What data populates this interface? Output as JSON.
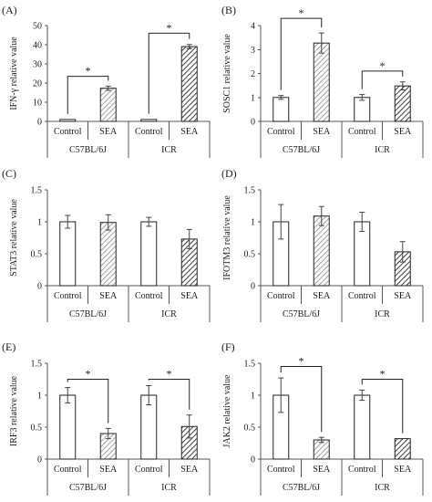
{
  "chart_data": [
    {
      "type": "bar",
      "panel_label": "(A)",
      "ylabel": "IFN-γ relative value",
      "ylim": [
        0,
        50
      ],
      "yticks": [
        0,
        10,
        20,
        30,
        40,
        50
      ],
      "categories": [
        "Control",
        "SEA",
        "Control",
        "SEA"
      ],
      "groups": [
        "C57BL/6J",
        "ICR"
      ],
      "values": [
        1,
        17.3,
        1,
        39
      ],
      "errors": [
        0,
        1.1,
        0,
        1.1
      ],
      "significance": [
        {
          "from": 0,
          "to": 1,
          "label": "*",
          "y": 23.5
        },
        {
          "from": 2,
          "to": 3,
          "label": "*",
          "y": 46
        }
      ]
    },
    {
      "type": "bar",
      "panel_label": "(B)",
      "ylabel": "SOSC1 relative value",
      "ylim": [
        0,
        4
      ],
      "yticks": [
        0,
        1,
        2,
        3,
        4
      ],
      "categories": [
        "Control",
        "SEA",
        "Control",
        "SEA"
      ],
      "groups": [
        "C57BL/6J",
        "ICR"
      ],
      "values": [
        1,
        3.27,
        1,
        1.48
      ],
      "errors": [
        0.08,
        0.42,
        0.12,
        0.17
      ],
      "significance": [
        {
          "from": 0,
          "to": 1,
          "label": "*",
          "y": 4.3
        },
        {
          "from": 2,
          "to": 3,
          "label": "*",
          "y": 2.1
        }
      ]
    },
    {
      "type": "bar",
      "panel_label": "(C)",
      "ylabel": "STAT3 relative value",
      "ylim": [
        0,
        1.5
      ],
      "yticks": [
        0,
        0.5,
        1,
        1.5
      ],
      "categories": [
        "Control",
        "SEA",
        "Control",
        "SEA"
      ],
      "groups": [
        "C57BL/6J",
        "ICR"
      ],
      "values": [
        1,
        0.99,
        1,
        0.73
      ],
      "errors": [
        0.1,
        0.12,
        0.07,
        0.15
      ],
      "significance": []
    },
    {
      "type": "bar",
      "panel_label": "(D)",
      "ylabel": "IFOTM3 relative value",
      "ylim": [
        0,
        1.5
      ],
      "yticks": [
        0,
        0.5,
        1,
        1.5
      ],
      "categories": [
        "Control",
        "SEA",
        "Control",
        "SEA"
      ],
      "groups": [
        "C57BL/6J",
        "ICR"
      ],
      "values": [
        1,
        1.09,
        1,
        0.53
      ],
      "errors": [
        0.27,
        0.15,
        0.15,
        0.16
      ],
      "significance": []
    },
    {
      "type": "bar",
      "panel_label": "(E)",
      "ylabel": "IRF3 relative value",
      "ylim": [
        0,
        1.5
      ],
      "yticks": [
        0,
        0.5,
        1,
        1.5
      ],
      "categories": [
        "Control",
        "SEA",
        "Control",
        "SEA"
      ],
      "groups": [
        "C57BL/6J",
        "ICR"
      ],
      "values": [
        1,
        0.4,
        1,
        0.51
      ],
      "errors": [
        0.12,
        0.08,
        0.15,
        0.18
      ],
      "significance": [
        {
          "from": 0,
          "to": 1,
          "label": "*",
          "y": 1.25
        },
        {
          "from": 2,
          "to": 3,
          "label": "*",
          "y": 1.25
        }
      ]
    },
    {
      "type": "bar",
      "panel_label": "(F)",
      "ylabel": "JAK2 relative value",
      "ylim": [
        0,
        1.5
      ],
      "yticks": [
        0,
        0.5,
        1,
        1.5
      ],
      "categories": [
        "Control",
        "SEA",
        "Control",
        "SEA"
      ],
      "groups": [
        "C57BL/6J",
        "ICR"
      ],
      "values": [
        1,
        0.3,
        1,
        0.32
      ],
      "errors": [
        0.27,
        0.04,
        0.08,
        0
      ],
      "significance": [
        {
          "from": 0,
          "to": 1,
          "label": "*",
          "y": 1.45
        },
        {
          "from": 2,
          "to": 3,
          "label": "*",
          "y": 1.25
        }
      ]
    }
  ],
  "colors": {
    "control_fill": "#ffffff",
    "sea_c57_hatch": "#8c8c8c",
    "sea_icr_hatch": "#2a2a2a",
    "outline": "#222222",
    "axis": "#555555"
  }
}
